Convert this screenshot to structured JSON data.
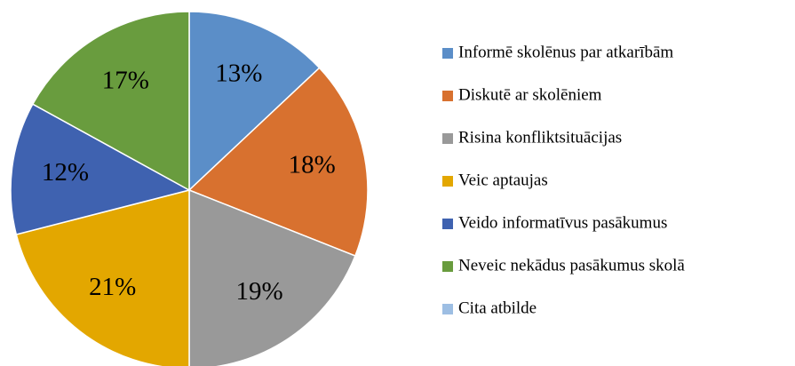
{
  "chart_data": {
    "type": "pie",
    "categories": [
      "Informē skolēnus par atkarībām",
      "Diskutē ar skolēniem",
      "Risina konfliktsituācijas",
      "Veic aptaujas",
      "Veido informatīvus pasākumus",
      "Neveic nekādus pasākumus skolā",
      "Cita atbilde"
    ],
    "values": [
      13,
      18,
      19,
      21,
      12,
      17,
      0
    ],
    "value_labels": [
      "13%",
      "18%",
      "19%",
      "21%",
      "12%",
      "17%",
      null
    ],
    "colors": [
      "#5b8ec8",
      "#d8712f",
      "#999999",
      "#e3a700",
      "#3f62b0",
      "#699c3e",
      "#9dbee3"
    ],
    "legend": "right"
  }
}
